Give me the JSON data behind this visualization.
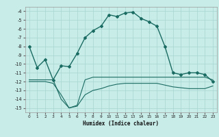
{
  "xlabel": "Humidex (Indice chaleur)",
  "bg_color": "#c8ece8",
  "grid_color": "#a8d4d0",
  "line_color": "#1a6b62",
  "curve1_x": [
    0,
    1,
    2,
    3,
    4,
    5,
    6,
    7,
    8,
    9,
    10,
    11,
    12,
    13,
    14,
    15,
    16,
    17,
    18,
    19,
    20,
    21,
    22,
    23
  ],
  "curve1_y": [
    -8.0,
    -10.4,
    -9.5,
    -11.8,
    -10.2,
    -10.3,
    -8.8,
    -7.0,
    -6.2,
    -5.7,
    -4.4,
    -4.6,
    -4.2,
    -4.1,
    -4.8,
    -5.2,
    -5.7,
    -8.0,
    -11.0,
    -11.2,
    -11.0,
    -11.0,
    -11.2,
    -12.0
  ],
  "curve2_x": [
    0,
    1,
    2,
    3,
    4,
    5,
    6,
    7,
    8,
    9,
    10,
    11,
    12,
    13,
    14,
    15,
    16,
    17,
    18,
    19,
    20,
    21,
    22,
    23
  ],
  "curve2_y": [
    -11.8,
    -11.8,
    -11.8,
    -11.8,
    -14.0,
    -15.0,
    -14.7,
    -11.8,
    -11.5,
    -11.5,
    -11.5,
    -11.5,
    -11.5,
    -11.5,
    -11.5,
    -11.5,
    -11.5,
    -11.5,
    -11.5,
    -11.5,
    -11.5,
    -11.5,
    -11.5,
    -11.8
  ],
  "curve3_x": [
    0,
    1,
    2,
    3,
    4,
    5,
    6,
    7,
    8,
    9,
    10,
    11,
    12,
    13,
    14,
    15,
    16,
    17,
    18,
    19,
    20,
    21,
    22,
    23
  ],
  "curve3_y": [
    -12.0,
    -12.0,
    -12.0,
    -12.2,
    -13.5,
    -15.0,
    -14.8,
    -13.5,
    -13.0,
    -12.8,
    -12.5,
    -12.3,
    -12.2,
    -12.2,
    -12.2,
    -12.2,
    -12.2,
    -12.4,
    -12.6,
    -12.7,
    -12.8,
    -12.8,
    -12.8,
    -12.5
  ],
  "ylim": [
    -15.5,
    -3.5
  ],
  "xlim": [
    -0.5,
    23.5
  ],
  "yticks": [
    -15,
    -14,
    -13,
    -12,
    -11,
    -10,
    -9,
    -8,
    -7,
    -6,
    -5,
    -4
  ],
  "xticks": [
    0,
    1,
    2,
    3,
    4,
    5,
    6,
    7,
    8,
    9,
    10,
    11,
    12,
    13,
    14,
    15,
    16,
    17,
    18,
    19,
    20,
    21,
    22,
    23
  ]
}
